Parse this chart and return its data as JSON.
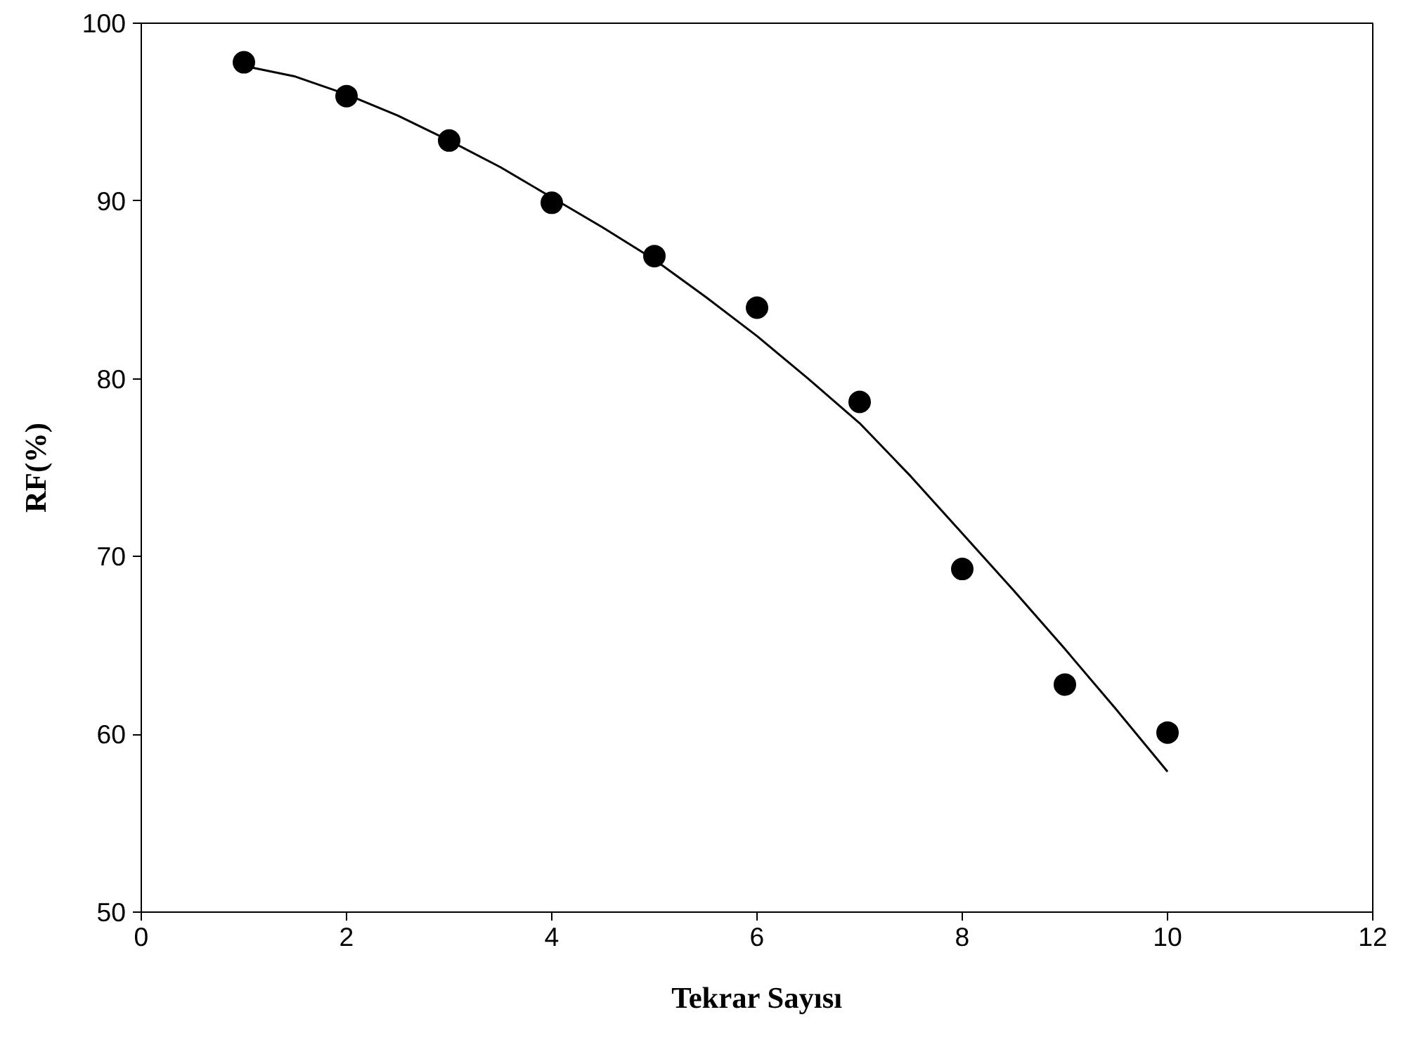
{
  "chart_data": {
    "type": "scatter",
    "xlabel": "Tekrar Sayısı",
    "ylabel": "RF(%)",
    "x": [
      1,
      2,
      3,
      4,
      5,
      6,
      7,
      8,
      9,
      10
    ],
    "series": [
      {
        "color": "#000000",
        "marker": "circle",
        "values": [
          97.8,
          95.9,
          93.4,
          89.9,
          86.9,
          84.0,
          78.7,
          69.3,
          62.8,
          60.1
        ]
      },
      {
        "type": "line",
        "color": "#000000",
        "line_style": "solid",
        "x": [
          1,
          1.5,
          2,
          2.5,
          3,
          3.5,
          4,
          4.5,
          5,
          5.5,
          6,
          6.5,
          7,
          7.5,
          8,
          8.5,
          9,
          9.5,
          10
        ],
        "values": [
          97.6,
          97.0,
          96.0,
          94.8,
          93.4,
          91.9,
          90.2,
          88.5,
          86.7,
          84.6,
          82.4,
          80.0,
          77.5,
          74.5,
          71.3,
          68.1,
          64.8,
          61.4,
          57.9
        ]
      }
    ],
    "xlim": [
      0,
      12
    ],
    "xticks": [
      0,
      2,
      4,
      6,
      8,
      10,
      12
    ],
    "ylim": [
      50,
      100
    ],
    "yticks": [
      50,
      60,
      70,
      80,
      90,
      100
    ],
    "grid": false
  }
}
